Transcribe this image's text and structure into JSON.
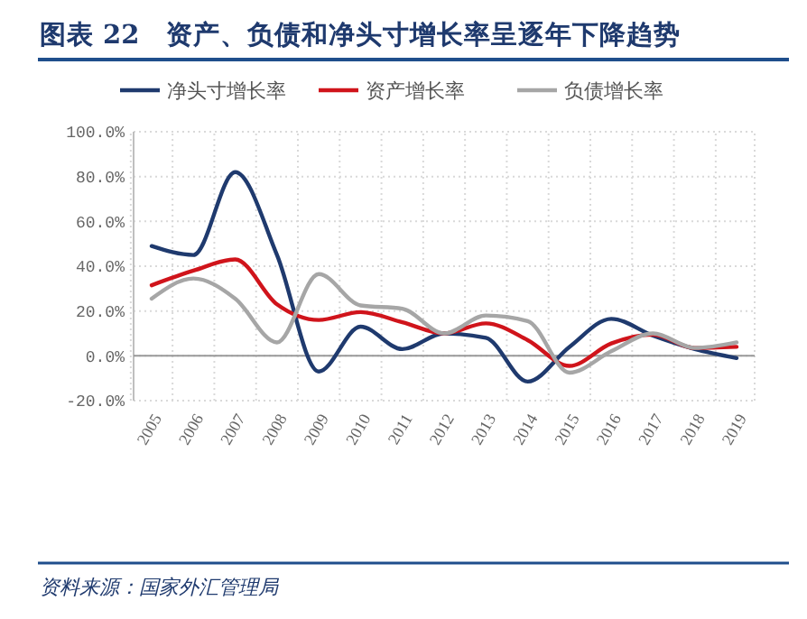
{
  "chart_data": {
    "type": "line",
    "title": "图表 22　资产、负债和净头寸增长率呈逐年下降趋势",
    "categories": [
      "2005",
      "2006",
      "2007",
      "2008",
      "2009",
      "2010",
      "2011",
      "2012",
      "2013",
      "2014",
      "2015",
      "2016",
      "2017",
      "2018",
      "2019"
    ],
    "series": [
      {
        "name": "净头寸增长率",
        "color": "#1f3a6e",
        "values": [
          49,
          45,
          82,
          45,
          -7,
          13,
          3,
          10,
          8,
          -11.5,
          4,
          16.5,
          9,
          3,
          -1
        ]
      },
      {
        "name": "资产增长率",
        "color": "#d0141b",
        "values": [
          31.5,
          38,
          43,
          23,
          16,
          19.5,
          15,
          10,
          14.5,
          7,
          -4.5,
          5.5,
          9.5,
          3.5,
          4
        ]
      },
      {
        "name": "负债增长率",
        "color": "#a6a6a6",
        "values": [
          25.5,
          34.5,
          25.5,
          6,
          36.5,
          22.5,
          21,
          10,
          18,
          15.5,
          -7.5,
          2,
          10,
          3.5,
          6
        ]
      }
    ],
    "ylim": [
      -20,
      100
    ],
    "yticks": [
      {
        "value": -20,
        "label": "-20.0%"
      },
      {
        "value": 0,
        "label": "0.0%"
      },
      {
        "value": 20,
        "label": "20.0%"
      },
      {
        "value": 40,
        "label": "40.0%"
      },
      {
        "value": 60,
        "label": "60.0%"
      },
      {
        "value": 80,
        "label": "80.0%"
      },
      {
        "value": 100,
        "label": "100.0%"
      }
    ],
    "grid": true,
    "legend": "top",
    "marker": "none",
    "line_style": "solid",
    "annotations": [
      "资料来源：国家外汇管理局"
    ]
  }
}
